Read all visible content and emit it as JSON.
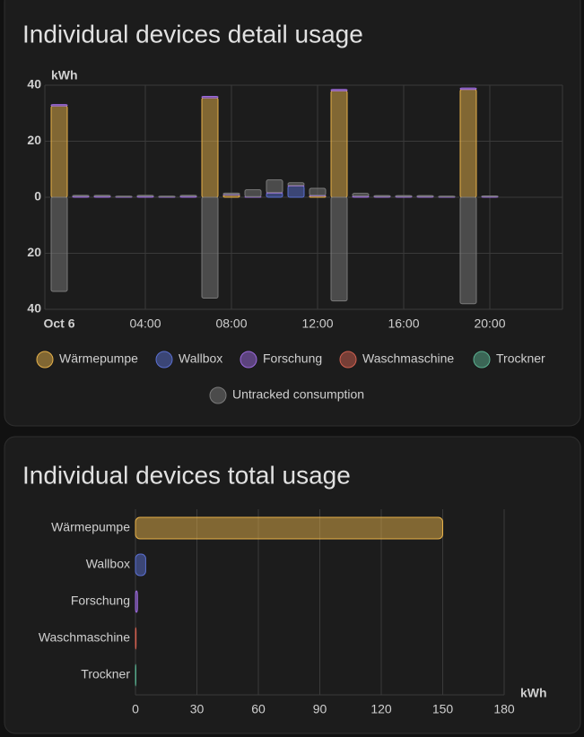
{
  "chart_data": [
    {
      "type": "bar",
      "stacked": true,
      "title": "Individual devices detail usage",
      "y_label": "kWh",
      "categories": [
        "Oct 6",
        null,
        null,
        null,
        "04:00",
        null,
        null,
        null,
        "08:00",
        null,
        null,
        null,
        "12:00",
        null,
        null,
        null,
        "16:00",
        null,
        null,
        null,
        "20:00",
        null,
        null,
        null
      ],
      "series": [
        {
          "name": "Wärmepumpe",
          "color": "#e6b14a",
          "values": [
            32.6,
            0,
            0,
            0,
            0,
            0,
            0,
            35.5,
            0.8,
            0,
            0,
            0,
            0.5,
            38,
            0,
            0,
            0,
            0,
            0,
            38.5,
            0,
            null,
            null,
            null
          ]
        },
        {
          "name": "Wallbox",
          "color": "#5a6fd0",
          "values": [
            0,
            0,
            0,
            0,
            0,
            0,
            0,
            0,
            0,
            0,
            1.5,
            4,
            0,
            0,
            0,
            0,
            0,
            0,
            0,
            0,
            0,
            null,
            null,
            null
          ]
        },
        {
          "name": "Forschung",
          "color": "#9c6ade",
          "values": [
            0.5,
            0.4,
            0.4,
            0.2,
            0.4,
            0.2,
            0.4,
            0.5,
            0.2,
            0.2,
            0.2,
            0.2,
            0.2,
            0.5,
            0.4,
            0.3,
            0.3,
            0.3,
            0.2,
            0.5,
            0.3,
            null,
            null,
            null
          ]
        },
        {
          "name": "Waschmaschine",
          "color": "#d06050",
          "values": [
            0,
            0,
            0,
            0,
            0,
            0,
            0,
            0,
            0,
            0,
            0,
            0,
            0,
            0,
            0,
            0,
            0,
            0,
            0,
            0,
            0,
            null,
            null,
            null
          ]
        },
        {
          "name": "Trockner",
          "color": "#5ab090",
          "values": [
            0,
            0,
            0,
            0,
            0,
            0,
            0,
            0,
            0,
            0,
            0,
            0,
            0,
            0,
            0,
            0,
            0,
            0,
            0,
            0,
            0,
            null,
            null,
            null
          ]
        },
        {
          "name": "Untracked consumption",
          "color": "#7a7a7a",
          "values": [
            -33.6,
            0.3,
            0.3,
            0.2,
            0.3,
            0.2,
            0.3,
            -36,
            0.5,
            2.5,
            4.5,
            1,
            2.5,
            -37,
            1,
            0.3,
            0.3,
            0.3,
            0.2,
            -38,
            0.2,
            null,
            null,
            null
          ]
        }
      ],
      "ylim": [
        -40,
        40
      ],
      "yticks": [
        {
          "value": -40,
          "label": "40"
        },
        {
          "value": -20,
          "label": "20"
        },
        0,
        20,
        40
      ],
      "grid": true
    },
    {
      "type": "hbar",
      "title": "Individual devices total usage",
      "x_label": "kWh",
      "categories": [
        "Wärmepumpe",
        "Wallbox",
        "Forschung",
        "Waschmaschine",
        "Trockner"
      ],
      "values": [
        150,
        5,
        1,
        0.3,
        0.2
      ],
      "colors": [
        "#e6b14a",
        "#5a6fd0",
        "#9c6ade",
        "#d06050",
        "#5ab090"
      ],
      "xlim": [
        0,
        180
      ],
      "xticks": [
        0,
        30,
        60,
        90,
        120,
        150,
        180
      ],
      "grid": true
    }
  ]
}
